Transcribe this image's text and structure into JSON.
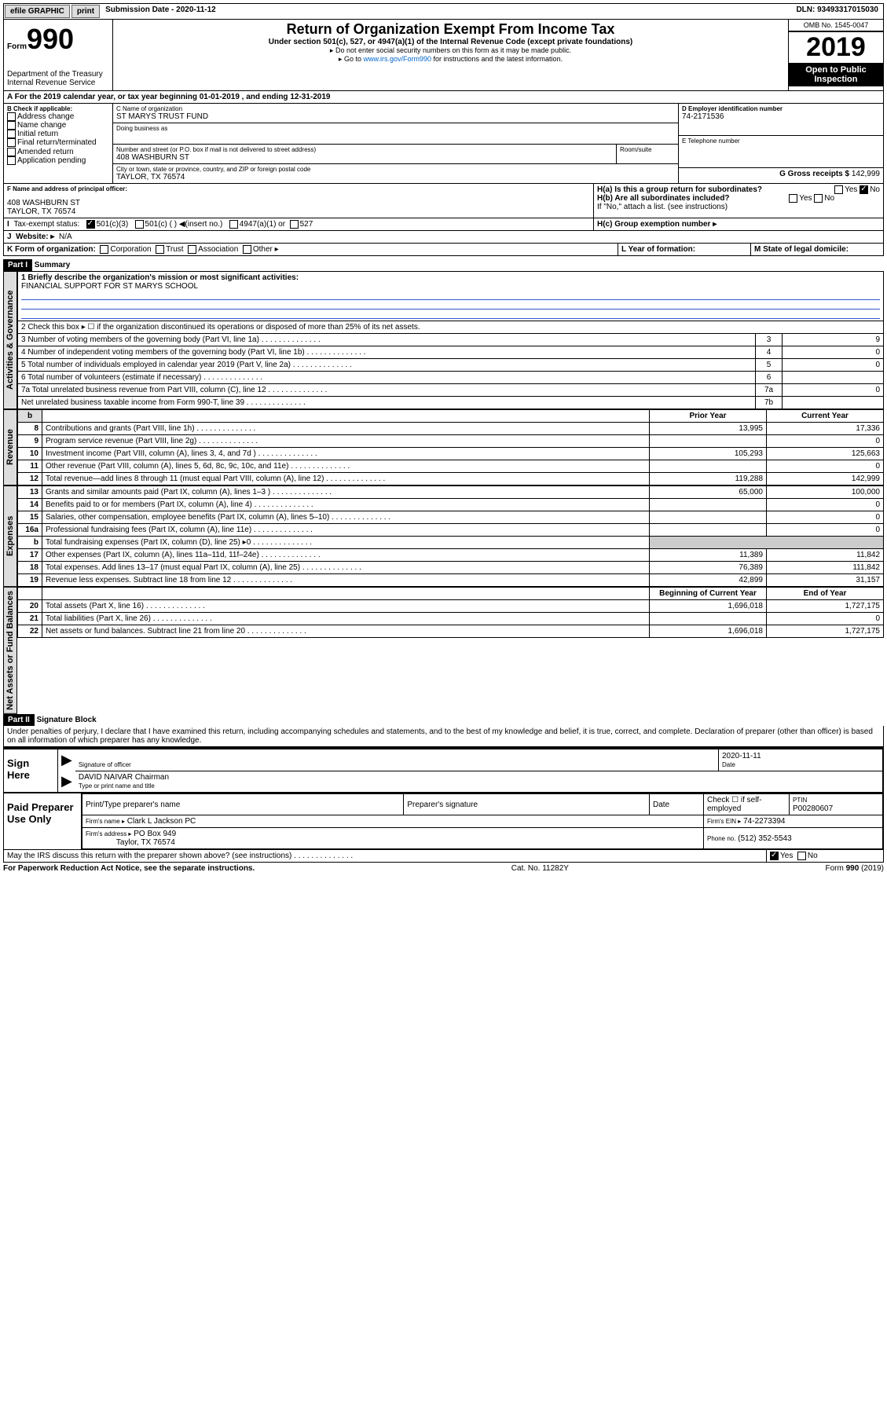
{
  "topbar": {
    "efile": "efile GRAPHIC",
    "print": "print",
    "subdate_label": "Submission Date - ",
    "subdate": "2020-11-12",
    "dln_label": "DLN: ",
    "dln": "93493317015030"
  },
  "header": {
    "form": "Form",
    "num": "990",
    "title": "Return of Organization Exempt From Income Tax",
    "sub1": "Under section 501(c), 527, or 4947(a)(1) of the Internal Revenue Code (except private foundations)",
    "sub2": "▸ Do not enter social security numbers on this form as it may be made public.",
    "sub3": "▸ Go to www.irs.gov/Form990 for instructions and the latest information.",
    "dept": "Department of the Treasury",
    "irs": "Internal Revenue Service",
    "omb": "OMB No. 1545-0047",
    "year": "2019",
    "open": "Open to Public Inspection"
  },
  "period": {
    "line": "A For the 2019 calendar year, or tax year beginning 01-01-2019  , and ending 12-31-2019"
  },
  "boxB": {
    "label": "B Check if applicable:",
    "items": [
      "Address change",
      "Name change",
      "Initial return",
      "Final return/terminated",
      "Amended return",
      "Application pending"
    ]
  },
  "boxC": {
    "name_label": "C Name of organization",
    "name": "ST MARYS TRUST FUND",
    "dba_label": "Doing business as",
    "dba": "",
    "addr_label": "Number and street (or P.O. box if mail is not delivered to street address)",
    "room_label": "Room/suite",
    "addr": "408 WASHBURN ST",
    "city_label": "City or town, state or province, country, and ZIP or foreign postal code",
    "city": "TAYLOR, TX  76574"
  },
  "boxD": {
    "label": "D Employer identification number",
    "ein": "74-2171536"
  },
  "boxE": {
    "label": "E Telephone number",
    "val": ""
  },
  "boxG": {
    "label": "G Gross receipts $ ",
    "val": "142,999"
  },
  "boxF": {
    "label": "F  Name and address of principal officer:",
    "addr1": "408 WASHBURN ST",
    "addr2": "TAYLOR, TX  76574"
  },
  "boxH": {
    "a": "H(a)  Is this a group return for subordinates?",
    "b": "H(b)  Are all subordinates included?",
    "b2": "If \"No,\" attach a list. (see instructions)",
    "c": "H(c)  Group exemption number ▸",
    "yes": "Yes",
    "no": "No"
  },
  "boxI": {
    "label": "Tax-exempt status:",
    "c3": "501(c)(3)",
    "c": "501(c) ( ) ◀(insert no.)",
    "a47": "4947(a)(1) or",
    "s527": "527"
  },
  "boxJ": {
    "label": "Website: ▸",
    "val": "N/A"
  },
  "boxK": {
    "label": "K Form of organization:",
    "opts": [
      "Corporation",
      "Trust",
      "Association",
      "Other ▸"
    ]
  },
  "boxL": {
    "label": "L Year of formation:",
    "val": ""
  },
  "boxM": {
    "label": "M State of legal domicile:",
    "val": ""
  },
  "part1": {
    "hdr": "Part I",
    "title": "Summary"
  },
  "summary": {
    "l1": "1  Briefly describe the organization's mission or most significant activities:",
    "l1v": "FINANCIAL SUPPORT FOR ST MARYS SCHOOL",
    "l2": "2  Check this box ▸ ☐  if the organization discontinued its operations or disposed of more than 25% of its net assets.",
    "l3": "3  Number of voting members of the governing body (Part VI, line 1a)",
    "l4": "4  Number of independent voting members of the governing body (Part VI, line 1b)",
    "l5": "5  Total number of individuals employed in calendar year 2019 (Part V, line 2a)",
    "l6": "6  Total number of volunteers (estimate if necessary)",
    "l7a": "7a Total unrelated business revenue from Part VIII, column (C), line 12",
    "l7b": "    Net unrelated business taxable income from Form 990-T, line 39",
    "n3": "3",
    "v3": "9",
    "n4": "4",
    "v4": "0",
    "n5": "5",
    "v5": "0",
    "n6": "6",
    "v6": "",
    "n7a": "7a",
    "v7a": "0",
    "n7b": "7b",
    "v7b": ""
  },
  "cols": {
    "prior": "Prior Year",
    "current": "Current Year",
    "begin": "Beginning of Current Year",
    "end": "End of Year"
  },
  "revenue": [
    {
      "n": "8",
      "d": "Contributions and grants (Part VIII, line 1h)",
      "p": "13,995",
      "c": "17,336"
    },
    {
      "n": "9",
      "d": "Program service revenue (Part VIII, line 2g)",
      "p": "",
      "c": "0"
    },
    {
      "n": "10",
      "d": "Investment income (Part VIII, column (A), lines 3, 4, and 7d )",
      "p": "105,293",
      "c": "125,663"
    },
    {
      "n": "11",
      "d": "Other revenue (Part VIII, column (A), lines 5, 6d, 8c, 9c, 10c, and 11e)",
      "p": "",
      "c": "0"
    },
    {
      "n": "12",
      "d": "Total revenue—add lines 8 through 11 (must equal Part VIII, column (A), line 12)",
      "p": "119,288",
      "c": "142,999"
    }
  ],
  "expenses": [
    {
      "n": "13",
      "d": "Grants and similar amounts paid (Part IX, column (A), lines 1–3 )",
      "p": "65,000",
      "c": "100,000"
    },
    {
      "n": "14",
      "d": "Benefits paid to or for members (Part IX, column (A), line 4)",
      "p": "",
      "c": "0"
    },
    {
      "n": "15",
      "d": "Salaries, other compensation, employee benefits (Part IX, column (A), lines 5–10)",
      "p": "",
      "c": "0"
    },
    {
      "n": "16a",
      "d": "Professional fundraising fees (Part IX, column (A), line 11e)",
      "p": "",
      "c": "0"
    },
    {
      "n": "b",
      "d": "Total fundraising expenses (Part IX, column (D), line 25) ▸0",
      "p": null,
      "c": null
    },
    {
      "n": "17",
      "d": "Other expenses (Part IX, column (A), lines 11a–11d, 11f–24e)",
      "p": "11,389",
      "c": "11,842"
    },
    {
      "n": "18",
      "d": "Total expenses. Add lines 13–17 (must equal Part IX, column (A), line 25)",
      "p": "76,389",
      "c": "111,842"
    },
    {
      "n": "19",
      "d": "Revenue less expenses. Subtract line 18 from line 12",
      "p": "42,899",
      "c": "31,157"
    }
  ],
  "netassets": [
    {
      "n": "20",
      "d": "Total assets (Part X, line 16)",
      "p": "1,696,018",
      "c": "1,727,175"
    },
    {
      "n": "21",
      "d": "Total liabilities (Part X, line 26)",
      "p": "",
      "c": "0"
    },
    {
      "n": "22",
      "d": "Net assets or fund balances. Subtract line 21 from line 20",
      "p": "1,696,018",
      "c": "1,727,175"
    }
  ],
  "tabs": {
    "gov": "Activities & Governance",
    "rev": "Revenue",
    "exp": "Expenses",
    "net": "Net Assets or Fund Balances"
  },
  "part2": {
    "hdr": "Part II",
    "title": "Signature Block",
    "decl": "Under penalties of perjury, I declare that I have examined this return, including accompanying schedules and statements, and to the best of my knowledge and belief, it is true, correct, and complete. Declaration of preparer (other than officer) is based on all information of which preparer has any knowledge."
  },
  "sign": {
    "lab": "Sign Here",
    "sig": "Signature of officer",
    "date_label": "Date",
    "date": "2020-11-11",
    "name": "DAVID NAIVAR  Chairman",
    "name_label": "Type or print name and title"
  },
  "prep": {
    "lab": "Paid Preparer Use Only",
    "pt": "Print/Type preparer's name",
    "ps": "Preparer's signature",
    "dl": "Date",
    "selfemp": "Check ☐ if self-employed",
    "ptin_label": "PTIN",
    "ptin": "P00280607",
    "firm_label": "Firm's name  ▸",
    "firm": "Clark L Jackson PC",
    "ein_label": "Firm's EIN ▸",
    "ein": "74-2273394",
    "addr_label": "Firm's address ▸",
    "addr1": "PO Box 949",
    "addr2": "Taylor, TX  76574",
    "phone_label": "Phone no.",
    "phone": "(512) 352-5543"
  },
  "discuss": {
    "q": "May the IRS discuss this return with the preparer shown above? (see instructions)",
    "yes": "Yes",
    "no": "No"
  },
  "footer": {
    "pra": "For Paperwork Reduction Act Notice, see the separate instructions.",
    "cat": "Cat. No. 11282Y",
    "form": "Form 990 (2019)"
  }
}
